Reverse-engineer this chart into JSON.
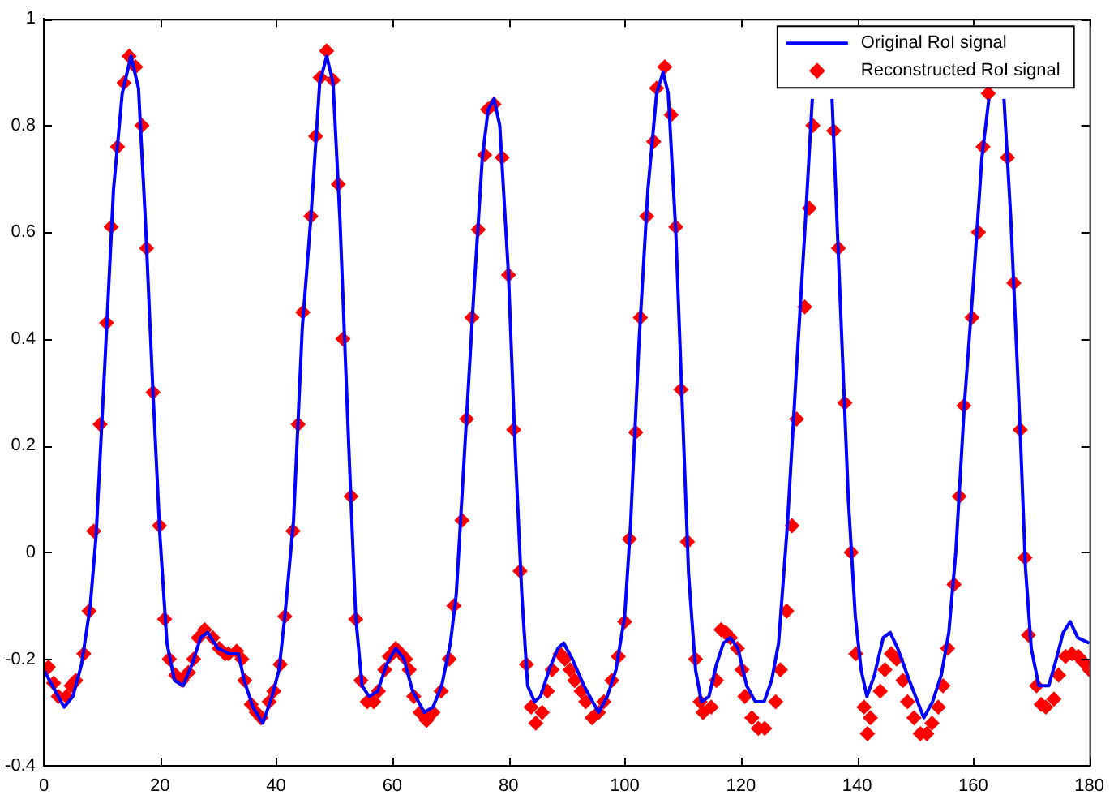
{
  "chart_data": {
    "type": "line",
    "xlim": [
      0,
      180
    ],
    "xticks": [
      0,
      20,
      40,
      60,
      80,
      100,
      120,
      140,
      160,
      180
    ],
    "ylim": [
      -0.4,
      1
    ],
    "yticks": [
      -0.4,
      -0.2,
      0,
      0.2,
      0.4,
      0.6,
      0.8,
      1
    ],
    "grid": false,
    "legend": "top right",
    "series": [
      {
        "name": "Original RoI signal",
        "color": "#0000ff",
        "marker": "none",
        "line_style": "solid",
        "x": [
          0,
          2,
          3.5,
          5,
          6.5,
          8,
          9,
          10.5,
          12,
          13.5,
          15,
          16.3,
          17.5,
          18.8,
          20,
          21.2,
          22.5,
          24,
          25.5,
          27,
          28.2,
          30,
          32,
          33.5,
          34.5,
          36,
          37.7,
          39.3,
          40.5,
          41.5,
          43,
          44.5,
          46,
          47.5,
          48.7,
          49.8,
          51,
          52.5,
          53.7,
          54.8,
          56,
          57.5,
          59,
          60.6,
          62,
          63.5,
          65.5,
          67,
          68.5,
          70,
          71,
          72.5,
          74,
          75.5,
          76.5,
          77.5,
          78.5,
          80,
          81.2,
          82.3,
          83.3,
          84.5,
          85.5,
          87,
          88.5,
          89.5,
          91,
          93,
          95.5,
          97,
          98.5,
          100,
          101,
          102.5,
          104,
          105.5,
          106.6,
          107.5,
          108.8,
          110,
          111,
          112.2,
          113.2,
          114.5,
          115.8,
          117,
          118.2,
          119.5,
          121,
          122.5,
          124,
          125.3,
          126.5,
          128,
          129.5,
          131,
          132.3,
          134,
          135.7,
          137,
          138.5,
          139.7,
          140.7,
          141.7,
          143,
          144.5,
          145.7,
          147,
          149,
          151.5,
          153,
          154.5,
          155.8,
          157,
          158.5,
          160,
          161.5,
          162.7,
          164,
          165.3,
          166.5,
          168,
          169,
          170,
          171.3,
          173,
          174.3,
          175.5,
          176.7,
          178,
          180
        ],
        "values": [
          -0.22,
          -0.26,
          -0.29,
          -0.27,
          -0.21,
          -0.1,
          0.03,
          0.35,
          0.68,
          0.86,
          0.93,
          0.87,
          0.62,
          0.3,
          0.03,
          -0.17,
          -0.24,
          -0.25,
          -0.21,
          -0.16,
          -0.15,
          -0.18,
          -0.19,
          -0.19,
          -0.24,
          -0.29,
          -0.32,
          -0.27,
          -0.22,
          -0.12,
          0.06,
          0.42,
          0.63,
          0.88,
          0.93,
          0.88,
          0.62,
          0.2,
          -0.12,
          -0.25,
          -0.27,
          -0.26,
          -0.21,
          -0.18,
          -0.2,
          -0.26,
          -0.3,
          -0.29,
          -0.25,
          -0.17,
          -0.08,
          0.2,
          0.48,
          0.74,
          0.83,
          0.85,
          0.8,
          0.52,
          0.18,
          -0.08,
          -0.25,
          -0.28,
          -0.27,
          -0.22,
          -0.18,
          -0.17,
          -0.2,
          -0.25,
          -0.3,
          -0.27,
          -0.22,
          -0.12,
          0.05,
          0.4,
          0.68,
          0.86,
          0.9,
          0.86,
          0.6,
          0.25,
          -0.04,
          -0.22,
          -0.28,
          -0.27,
          -0.21,
          -0.17,
          -0.16,
          -0.18,
          -0.25,
          -0.28,
          -0.28,
          -0.24,
          -0.17,
          0.05,
          0.33,
          0.6,
          0.85,
          null,
          0.85,
          0.5,
          0.1,
          -0.12,
          -0.22,
          -0.27,
          -0.23,
          -0.16,
          -0.15,
          -0.18,
          -0.24,
          -0.31,
          -0.28,
          -0.23,
          -0.15,
          0,
          0.28,
          0.5,
          0.74,
          0.85,
          null,
          0.85,
          0.62,
          0.25,
          -0.03,
          -0.18,
          -0.25,
          -0.25,
          -0.2,
          -0.15,
          -0.13,
          -0.16,
          -0.17
        ]
      },
      {
        "name": "Reconstructed RoI signal",
        "type": "scatter",
        "color": "#ff0000",
        "marker": "diamond",
        "x": [
          0.8,
          1.7,
          2.5,
          3.9,
          4.7,
          5.5,
          6.9,
          7.8,
          8.6,
          9.7,
          10.8,
          11.6,
          12.7,
          13.8,
          14.7,
          15.8,
          16.9,
          17.7,
          18.8,
          19.9,
          20.8,
          21.6,
          22.7,
          23.8,
          24.9,
          25.8,
          26.6,
          27.7,
          29.1,
          30.2,
          31.2,
          31.8,
          33.2,
          34.1,
          34.6,
          35.7,
          36.6,
          37.4,
          38.8,
          39.6,
          40.7,
          41.5,
          42.9,
          43.8,
          44.6,
          46,
          46.8,
          47.6,
          48.7,
          49.8,
          50.7,
          51.5,
          52.9,
          53.7,
          54.6,
          55.7,
          56.8,
          57.6,
          58.7,
          59.5,
          60.6,
          61.5,
          62.3,
          62.9,
          63.7,
          64.8,
          65.9,
          67,
          68.4,
          69.8,
          70.6,
          72,
          72.8,
          73.7,
          74.8,
          75.9,
          76.4,
          77.5,
          78.9,
          80,
          80.9,
          82,
          83.1,
          83.9,
          84.7,
          85.8,
          86.7,
          87.5,
          88.9,
          89.7,
          90.6,
          91.4,
          92.5,
          93.3,
          94.4,
          95.5,
          96.4,
          97.8,
          98.9,
          100,
          100.8,
          101.9,
          102.7,
          103.8,
          105,
          105.5,
          106.9,
          108,
          108.8,
          109.7,
          110.8,
          112.2,
          113,
          113.5,
          114.9,
          115.8,
          116.6,
          117.4,
          118.2,
          119.4,
          120.2,
          120.7,
          121.9,
          123,
          124.1,
          126,
          126.8,
          127.9,
          128.8,
          129.6,
          131,
          131.8,
          132.4,
          136,
          136.8,
          137.9,
          139,
          139.8,
          141.2,
          141.8,
          142.3,
          144,
          144.8,
          145.9,
          146.8,
          147.9,
          148.7,
          149.8,
          150.9,
          152,
          152.9,
          154,
          154.8,
          155.6,
          156.7,
          157.6,
          158.4,
          159.8,
          160.9,
          161.7,
          162.6,
          165.9,
          167,
          168.1,
          168.9,
          169.5,
          170.9,
          171.7,
          172.5,
          173.9,
          174.7,
          175.9,
          177,
          178.1,
          178.9,
          180
        ],
        "values": [
          -0.215,
          -0.245,
          -0.27,
          -0.27,
          -0.25,
          -0.24,
          -0.19,
          -0.11,
          0.04,
          0.24,
          0.43,
          0.61,
          0.76,
          0.88,
          0.93,
          0.91,
          0.8,
          0.57,
          0.3,
          0.05,
          -0.125,
          -0.2,
          -0.23,
          -0.24,
          -0.225,
          -0.2,
          -0.16,
          -0.145,
          -0.16,
          -0.18,
          -0.19,
          -0.19,
          -0.185,
          -0.2,
          -0.24,
          -0.285,
          -0.3,
          -0.31,
          -0.28,
          -0.26,
          -0.21,
          -0.12,
          0.04,
          0.24,
          0.45,
          0.63,
          0.78,
          0.89,
          0.94,
          0.885,
          0.69,
          0.4,
          0.105,
          -0.125,
          -0.24,
          -0.28,
          -0.28,
          -0.26,
          -0.22,
          -0.195,
          -0.18,
          -0.19,
          -0.2,
          -0.22,
          -0.27,
          -0.3,
          -0.315,
          -0.3,
          -0.26,
          -0.2,
          -0.1,
          0.06,
          0.25,
          0.44,
          0.605,
          0.745,
          0.83,
          0.84,
          0.74,
          0.52,
          0.23,
          -0.035,
          -0.21,
          -0.29,
          -0.32,
          -0.3,
          -0.26,
          -0.22,
          -0.19,
          -0.2,
          -0.22,
          -0.24,
          -0.26,
          -0.28,
          -0.31,
          -0.3,
          -0.28,
          -0.24,
          -0.195,
          -0.13,
          0.025,
          0.225,
          0.44,
          0.63,
          0.77,
          0.87,
          0.91,
          0.82,
          0.61,
          0.305,
          0.02,
          -0.2,
          -0.28,
          -0.3,
          -0.29,
          -0.24,
          -0.145,
          -0.15,
          -0.16,
          -0.18,
          -0.22,
          -0.27,
          -0.31,
          -0.33,
          -0.33,
          -0.28,
          -0.22,
          -0.11,
          0.05,
          0.25,
          0.46,
          0.645,
          0.8,
          0.79,
          0.57,
          0.28,
          0,
          -0.19,
          -0.29,
          -0.34,
          -0.31,
          -0.26,
          -0.22,
          -0.19,
          -0.2,
          -0.24,
          -0.28,
          -0.31,
          -0.34,
          -0.34,
          -0.32,
          -0.29,
          -0.25,
          -0.18,
          -0.06,
          0.105,
          0.275,
          0.44,
          0.6,
          0.76,
          0.86,
          0.74,
          0.505,
          0.23,
          -0.01,
          -0.155,
          -0.25,
          -0.285,
          -0.29,
          -0.275,
          -0.23,
          -0.195,
          -0.19,
          -0.195,
          -0.205,
          -0.22
        ]
      }
    ]
  }
}
